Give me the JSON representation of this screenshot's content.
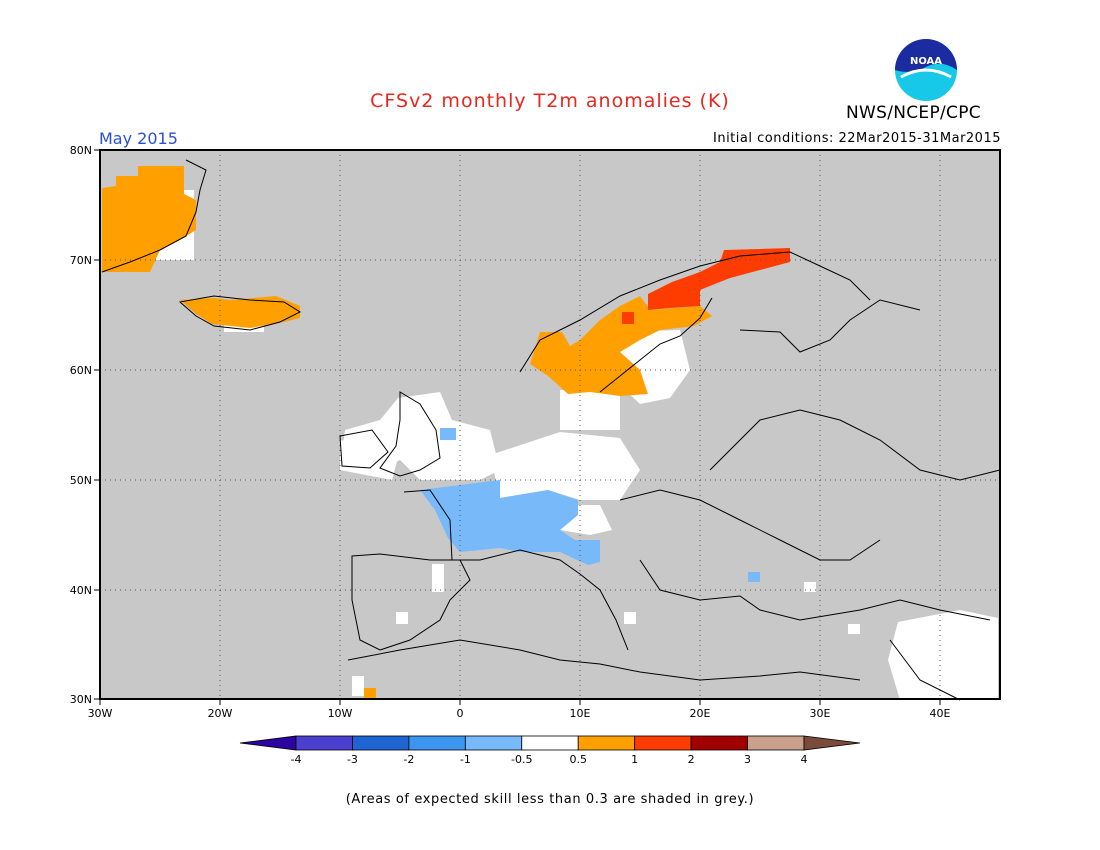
{
  "header": {
    "title": "CFSv2 monthly T2m anomalies (K)",
    "month": "May 2015",
    "initial_conditions": "Initial conditions: 22Mar2015-31Mar2015",
    "org": "NWS/NCEP/CPC",
    "logo_text": "NOAA"
  },
  "colors": {
    "title": "#e8281e",
    "skill_mask": "#c8c8c8",
    "frame": "#000000"
  },
  "axes": {
    "lon_labels": [
      "30W",
      "20W",
      "10W",
      "0",
      "10E",
      "20E",
      "30E",
      "40E"
    ],
    "lat_labels": [
      "80N",
      "70N",
      "60N",
      "50N",
      "40N",
      "30N"
    ],
    "lon_range": [
      -30,
      45
    ],
    "lat_range": [
      30,
      80
    ],
    "grid": "dotted"
  },
  "legend": {
    "bins": [
      {
        "color": "#2a05a0",
        "label": "-4"
      },
      {
        "color": "#4a3fcf",
        "label": "-3"
      },
      {
        "color": "#1e64d2",
        "label": "-2"
      },
      {
        "color": "#3c96f0",
        "label": "-1"
      },
      {
        "color": "#78b9fa",
        "label": "-0.5"
      },
      {
        "color": "#ffffff",
        "label": "0.5"
      },
      {
        "color": "#ffa000",
        "label": "1"
      },
      {
        "color": "#ff3c00",
        "label": "2"
      },
      {
        "color": "#a00000",
        "label": "3"
      },
      {
        "color": "#c8a08c",
        "label": "4"
      },
      {
        "color": "#7a4b3a",
        "label": ""
      }
    ]
  },
  "footnote": "(Areas of expected skill less than 0.3 are shaded in grey.)",
  "regions": [
    {
      "name": "east-greenland",
      "category": "0.5 to 1",
      "color": "#ffa000"
    },
    {
      "name": "iceland",
      "category": "0.5 to 1",
      "color": "#ffa000"
    },
    {
      "name": "northern-scandinavia",
      "category": "1 to 2",
      "color": "#ff3c00"
    },
    {
      "name": "southern-norway-sweden",
      "category": "0.5 to 1",
      "color": "#ffa000"
    },
    {
      "name": "france",
      "category": "-1 to -0.5",
      "color": "#78b9fa"
    },
    {
      "name": "central-europe-british-isles",
      "category": "-0.5 to 0.5",
      "color": "#ffffff"
    }
  ]
}
